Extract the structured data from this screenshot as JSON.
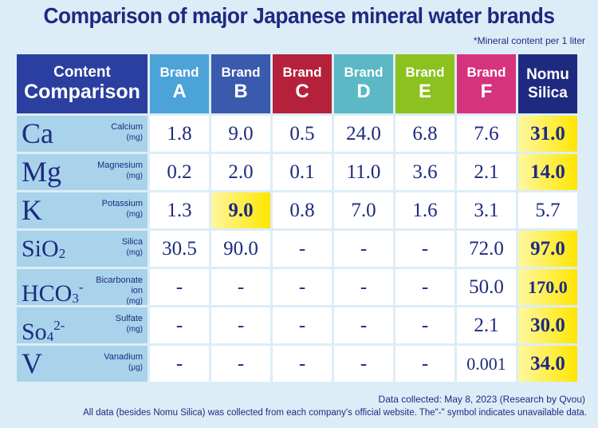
{
  "title": "Comparison of major Japanese mineral water brands",
  "note": "*Mineral content per 1 liter",
  "header": {
    "content_line1": "Content",
    "content_line2": "Comparison"
  },
  "columns": [
    {
      "line1": "Brand",
      "line2": "A",
      "color": "#4ba3d8"
    },
    {
      "line1": "Brand",
      "line2": "B",
      "color": "#3a5aad"
    },
    {
      "line1": "Brand",
      "line2": "C",
      "color": "#b5213a"
    },
    {
      "line1": "Brand",
      "line2": "D",
      "color": "#5cb8c4"
    },
    {
      "line1": "Brand",
      "line2": "E",
      "color": "#8cc21f"
    },
    {
      "line1": "Brand",
      "line2": "F",
      "color": "#d6337e"
    },
    {
      "line1": "Nomu",
      "line2": "Silica",
      "color": "#1e2a80"
    }
  ],
  "chart_data": {
    "type": "table",
    "title": "Comparison of major Japanese mineral water brands",
    "subtitle": "*Mineral content per 1 liter",
    "rows": [
      {
        "symbol": "Ca",
        "sub": "",
        "sup": "",
        "name": "Calcium",
        "unit": "(mg)",
        "values": [
          "1.8",
          "9.0",
          "0.5",
          "24.0",
          "6.8",
          "7.6",
          "31.0"
        ],
        "highlight": [
          6
        ]
      },
      {
        "symbol": "Mg",
        "sub": "",
        "sup": "",
        "name": "Magnesium",
        "unit": "(mg)",
        "values": [
          "0.2",
          "2.0",
          "0.1",
          "11.0",
          "3.6",
          "2.1",
          "14.0"
        ],
        "highlight": [
          6
        ]
      },
      {
        "symbol": "K",
        "sub": "",
        "sup": "",
        "name": "Potassium",
        "unit": "(mg)",
        "values": [
          "1.3",
          "9.0",
          "0.8",
          "7.0",
          "1.6",
          "3.1",
          "5.7"
        ],
        "highlight": [
          1
        ]
      },
      {
        "symbol": "SiO",
        "sub": "2",
        "sup": "",
        "name": "Silica",
        "unit": "(mg)",
        "values": [
          "30.5",
          "90.0",
          "-",
          "-",
          "-",
          "72.0",
          "97.0"
        ],
        "highlight": [
          6
        ]
      },
      {
        "symbol": "HCO",
        "sub": "3",
        "sup": "-",
        "name": "Bicarbonate ion",
        "unit": "(mg)",
        "values": [
          "-",
          "-",
          "-",
          "-",
          "-",
          "50.0",
          "170.0"
        ],
        "highlight": [
          6
        ]
      },
      {
        "symbol": "So",
        "sub": "4",
        "sup": "2-",
        "name": "Sulfate",
        "unit": "(mg)",
        "values": [
          "-",
          "-",
          "-",
          "-",
          "-",
          "2.1",
          "30.0"
        ],
        "highlight": [
          6
        ]
      },
      {
        "symbol": "V",
        "sub": "",
        "sup": "",
        "name": "Vanadium",
        "unit": "(μg)",
        "values": [
          "-",
          "-",
          "-",
          "-",
          "-",
          "0.001",
          "34.0"
        ],
        "highlight": [
          6
        ]
      }
    ]
  },
  "footer": {
    "collected": "Data collected: May 8, 2023 (Research by Qvou)",
    "disclaimer": "All data (besides Nomu Silica) was collected from each company's official website. The\"-\" symbol indicates unavailable data."
  }
}
